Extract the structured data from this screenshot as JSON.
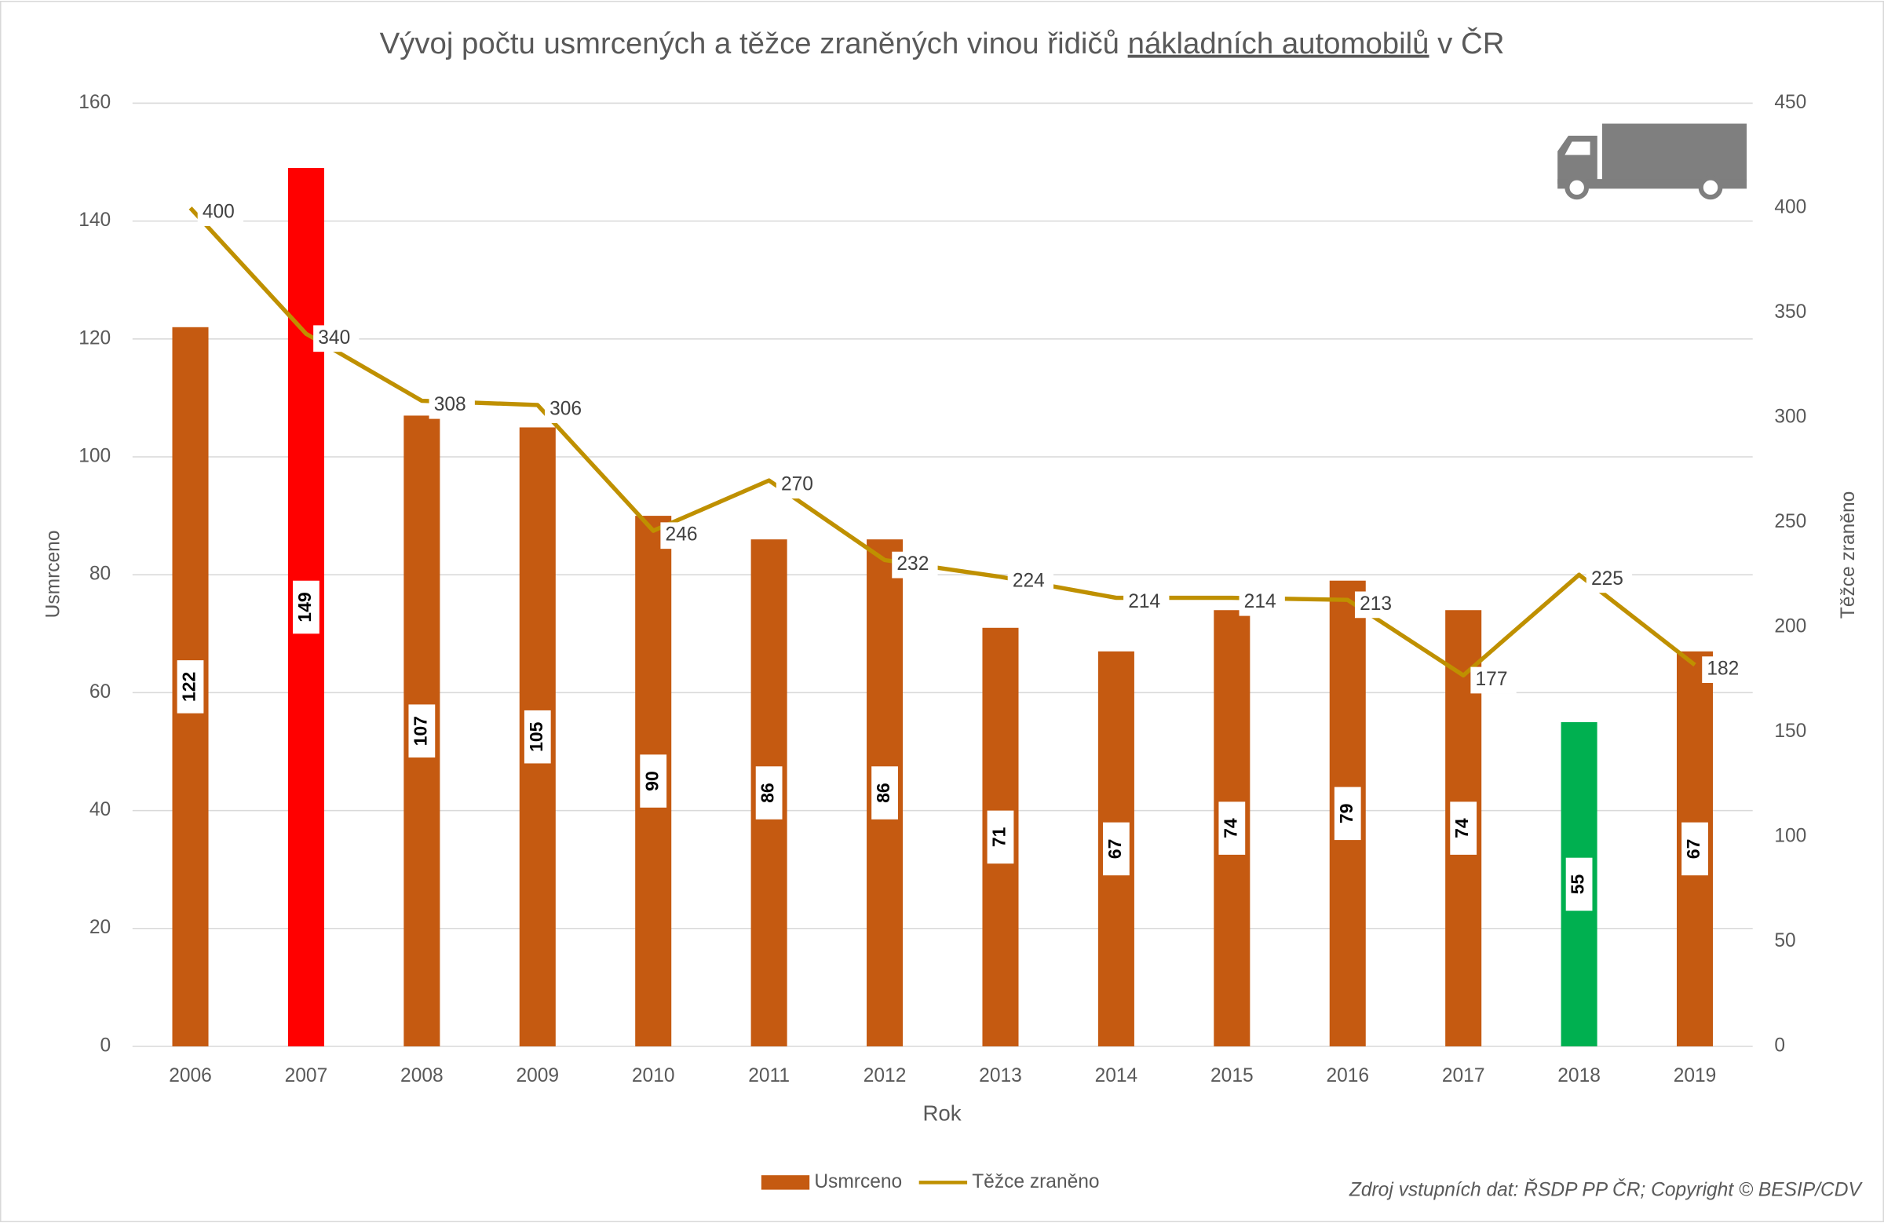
{
  "chart_data": {
    "type": "bar-line",
    "title": {
      "prefix": "Vývoj počtu usmrcených a těžce zraněných vinou řidičů",
      "underlined": "nákladních automobilů",
      "suffix": "v ČR"
    },
    "x_label": "Rok",
    "y_label": "Usmrceno",
    "y2_label": "Těžce zraněno",
    "source": "Zdroj vstupních dat: ŘSDP PP ČR; Copyright © BESIP/CDV",
    "categories": [
      "2006",
      "2007",
      "2008",
      "2009",
      "2010",
      "2011",
      "2012",
      "2013",
      "2014",
      "2015",
      "2016",
      "2017",
      "2018",
      "2019"
    ],
    "series": [
      {
        "name": "Usmrceno",
        "type": "bar",
        "color": "#c55a11",
        "bar_colors": [
          "#c55a11",
          "#ff0000",
          "#c55a11",
          "#c55a11",
          "#c55a11",
          "#c55a11",
          "#c55a11",
          "#c55a11",
          "#c55a11",
          "#c55a11",
          "#c55a11",
          "#c55a11",
          "#00b050",
          "#c55a11"
        ],
        "values": [
          122,
          149,
          107,
          105,
          90,
          86,
          86,
          71,
          67,
          74,
          79,
          74,
          55,
          67
        ]
      },
      {
        "name": "Těžce zraněno",
        "type": "line",
        "axis": "y2",
        "color": "#bf9000",
        "values": [
          400,
          340,
          308,
          306,
          246,
          270,
          232,
          224,
          214,
          214,
          213,
          177,
          225,
          182
        ]
      }
    ],
    "ylim": [
      0,
      160
    ],
    "yticks": [
      0,
      20,
      40,
      60,
      80,
      100,
      120,
      140,
      160
    ],
    "y2lim": [
      0,
      450
    ],
    "y2ticks": [
      0,
      50,
      100,
      150,
      200,
      250,
      300,
      350,
      400,
      450
    ],
    "grid": true
  }
}
